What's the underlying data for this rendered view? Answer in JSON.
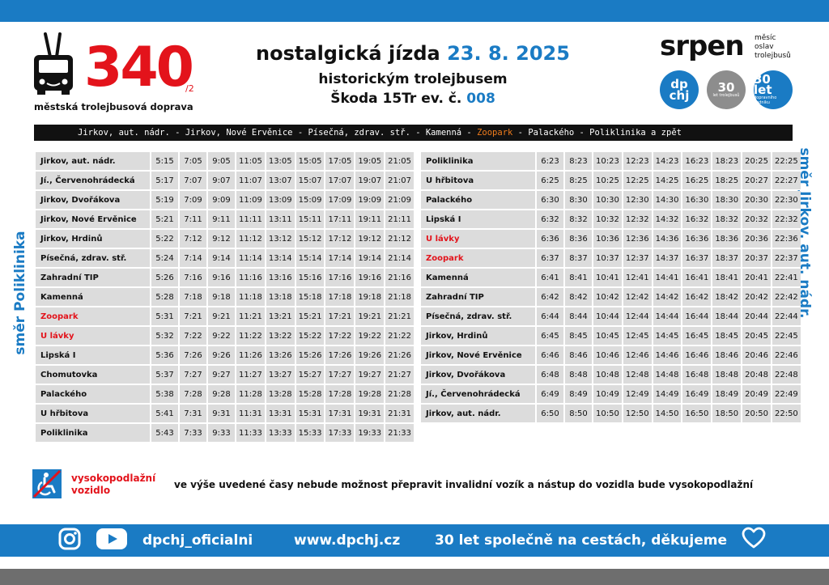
{
  "header": {
    "line_number": "340",
    "line_suffix": "/2",
    "city_label": "městská trolejbusová doprava",
    "title_black": "nostalgická jízda",
    "title_date": "23. 8. 2025",
    "subtitle1": "historickým trolejbusem",
    "subtitle2_black": "Škoda 15Tr ev. č.",
    "subtitle2_num": "008"
  },
  "branding": {
    "srpen": "srpen",
    "srpen_note": [
      "měsíc",
      "oslav",
      "trolejbusů"
    ],
    "logo_dpchj": [
      "dp",
      "chj"
    ],
    "logo_30a": {
      "main": "30",
      "sub": "let trolejbusů"
    },
    "logo_30b": {
      "main": "30 let",
      "sub": "dopravního podniku"
    }
  },
  "route_bar": {
    "before": "Jirkov, aut. nádr. - Jirkov, Nové Ervěnice - Písečná, zdrav. stř. - Kamenná - ",
    "highlight": "Zoopark",
    "after": " - Palackého - Poliklinika a zpět"
  },
  "direction_left": "směr Poliklinika",
  "direction_right": "směr Jirkov, aut. nádr.",
  "table_left": [
    {
      "stop": "Jirkov, aut. nádr.",
      "red": false,
      "times": [
        "5:15",
        "7:05",
        "9:05",
        "11:05",
        "13:05",
        "15:05",
        "17:05",
        "19:05",
        "21:05"
      ]
    },
    {
      "stop": "Jí., Červenohrádecká",
      "red": false,
      "times": [
        "5:17",
        "7:07",
        "9:07",
        "11:07",
        "13:07",
        "15:07",
        "17:07",
        "19:07",
        "21:07"
      ]
    },
    {
      "stop": "Jirkov, Dvořákova",
      "red": false,
      "times": [
        "5:19",
        "7:09",
        "9:09",
        "11:09",
        "13:09",
        "15:09",
        "17:09",
        "19:09",
        "21:09"
      ]
    },
    {
      "stop": "Jirkov, Nové Ervěnice",
      "red": false,
      "times": [
        "5:21",
        "7:11",
        "9:11",
        "11:11",
        "13:11",
        "15:11",
        "17:11",
        "19:11",
        "21:11"
      ]
    },
    {
      "stop": "Jirkov, Hrdinů",
      "red": false,
      "times": [
        "5:22",
        "7:12",
        "9:12",
        "11:12",
        "13:12",
        "15:12",
        "17:12",
        "19:12",
        "21:12"
      ]
    },
    {
      "stop": "Písečná, zdrav. stř.",
      "red": false,
      "times": [
        "5:24",
        "7:14",
        "9:14",
        "11:14",
        "13:14",
        "15:14",
        "17:14",
        "19:14",
        "21:14"
      ]
    },
    {
      "stop": "Zahradní TIP",
      "red": false,
      "times": [
        "5:26",
        "7:16",
        "9:16",
        "11:16",
        "13:16",
        "15:16",
        "17:16",
        "19:16",
        "21:16"
      ]
    },
    {
      "stop": "Kamenná",
      "red": false,
      "times": [
        "5:28",
        "7:18",
        "9:18",
        "11:18",
        "13:18",
        "15:18",
        "17:18",
        "19:18",
        "21:18"
      ]
    },
    {
      "stop": "Zoopark",
      "red": true,
      "times": [
        "5:31",
        "7:21",
        "9:21",
        "11:21",
        "13:21",
        "15:21",
        "17:21",
        "19:21",
        "21:21"
      ]
    },
    {
      "stop": "U lávky",
      "red": true,
      "times": [
        "5:32",
        "7:22",
        "9:22",
        "11:22",
        "13:22",
        "15:22",
        "17:22",
        "19:22",
        "21:22"
      ]
    },
    {
      "stop": "Lipská I",
      "red": false,
      "times": [
        "5:36",
        "7:26",
        "9:26",
        "11:26",
        "13:26",
        "15:26",
        "17:26",
        "19:26",
        "21:26"
      ]
    },
    {
      "stop": "Chomutovka",
      "red": false,
      "times": [
        "5:37",
        "7:27",
        "9:27",
        "11:27",
        "13:27",
        "15:27",
        "17:27",
        "19:27",
        "21:27"
      ]
    },
    {
      "stop": "Palackého",
      "red": false,
      "times": [
        "5:38",
        "7:28",
        "9:28",
        "11:28",
        "13:28",
        "15:28",
        "17:28",
        "19:28",
        "21:28"
      ]
    },
    {
      "stop": "U hřbitova",
      "red": false,
      "times": [
        "5:41",
        "7:31",
        "9:31",
        "11:31",
        "13:31",
        "15:31",
        "17:31",
        "19:31",
        "21:31"
      ]
    },
    {
      "stop": "Poliklinika",
      "red": false,
      "times": [
        "5:43",
        "7:33",
        "9:33",
        "11:33",
        "13:33",
        "15:33",
        "17:33",
        "19:33",
        "21:33"
      ]
    }
  ],
  "table_right": [
    {
      "stop": "Poliklinika",
      "red": false,
      "times": [
        "6:23",
        "8:23",
        "10:23",
        "12:23",
        "14:23",
        "16:23",
        "18:23",
        "20:25",
        "22:25"
      ]
    },
    {
      "stop": "U hřbitova",
      "red": false,
      "times": [
        "6:25",
        "8:25",
        "10:25",
        "12:25",
        "14:25",
        "16:25",
        "18:25",
        "20:27",
        "22:27"
      ]
    },
    {
      "stop": "Palackého",
      "red": false,
      "times": [
        "6:30",
        "8:30",
        "10:30",
        "12:30",
        "14:30",
        "16:30",
        "18:30",
        "20:30",
        "22:30"
      ]
    },
    {
      "stop": "Lipská I",
      "red": false,
      "times": [
        "6:32",
        "8:32",
        "10:32",
        "12:32",
        "14:32",
        "16:32",
        "18:32",
        "20:32",
        "22:32"
      ]
    },
    {
      "stop": "U lávky",
      "red": true,
      "times": [
        "6:36",
        "8:36",
        "10:36",
        "12:36",
        "14:36",
        "16:36",
        "18:36",
        "20:36",
        "22:36"
      ]
    },
    {
      "stop": "Zoopark",
      "red": true,
      "times": [
        "6:37",
        "8:37",
        "10:37",
        "12:37",
        "14:37",
        "16:37",
        "18:37",
        "20:37",
        "22:37"
      ]
    },
    {
      "stop": "Kamenná",
      "red": false,
      "times": [
        "6:41",
        "8:41",
        "10:41",
        "12:41",
        "14:41",
        "16:41",
        "18:41",
        "20:41",
        "22:41"
      ]
    },
    {
      "stop": "Zahradní TIP",
      "red": false,
      "times": [
        "6:42",
        "8:42",
        "10:42",
        "12:42",
        "14:42",
        "16:42",
        "18:42",
        "20:42",
        "22:42"
      ]
    },
    {
      "stop": "Písečná, zdrav. stř.",
      "red": false,
      "times": [
        "6:44",
        "8:44",
        "10:44",
        "12:44",
        "14:44",
        "16:44",
        "18:44",
        "20:44",
        "22:44"
      ]
    },
    {
      "stop": "Jirkov, Hrdinů",
      "red": false,
      "times": [
        "6:45",
        "8:45",
        "10:45",
        "12:45",
        "14:45",
        "16:45",
        "18:45",
        "20:45",
        "22:45"
      ]
    },
    {
      "stop": "Jirkov, Nové Ervěnice",
      "red": false,
      "times": [
        "6:46",
        "8:46",
        "10:46",
        "12:46",
        "14:46",
        "16:46",
        "18:46",
        "20:46",
        "22:46"
      ]
    },
    {
      "stop": "Jirkov, Dvořákova",
      "red": false,
      "times": [
        "6:48",
        "8:48",
        "10:48",
        "12:48",
        "14:48",
        "16:48",
        "18:48",
        "20:48",
        "22:48"
      ]
    },
    {
      "stop": "Jí., Červenohrádecká",
      "red": false,
      "times": [
        "6:49",
        "8:49",
        "10:49",
        "12:49",
        "14:49",
        "16:49",
        "18:49",
        "20:49",
        "22:49"
      ]
    },
    {
      "stop": "Jirkov, aut. nádr.",
      "red": false,
      "times": [
        "6:50",
        "8:50",
        "10:50",
        "12:50",
        "14:50",
        "16:50",
        "18:50",
        "20:50",
        "22:50"
      ]
    }
  ],
  "notice": {
    "icon": "no-wheelchair-icon",
    "label_line1": "vysokopodlažní",
    "label_line2": "vozidlo",
    "text": "ve výše uvedené časy nebude možnost přepravit invalidní vozík a nástup do vozidla bude vysokopodlažní"
  },
  "footer": {
    "social_handle": "dpchj_oficialni",
    "website": "www.dpchj.cz",
    "slogan": "30 let společně na cestách, děkujeme",
    "icons": [
      "instagram-icon",
      "youtube-icon",
      "heart-icon"
    ]
  },
  "colors": {
    "accent_blue": "#1a7bc4",
    "accent_red": "#e3131b",
    "zoo_orange": "#f07c1c",
    "cell_gray": "#dcdcdc"
  }
}
